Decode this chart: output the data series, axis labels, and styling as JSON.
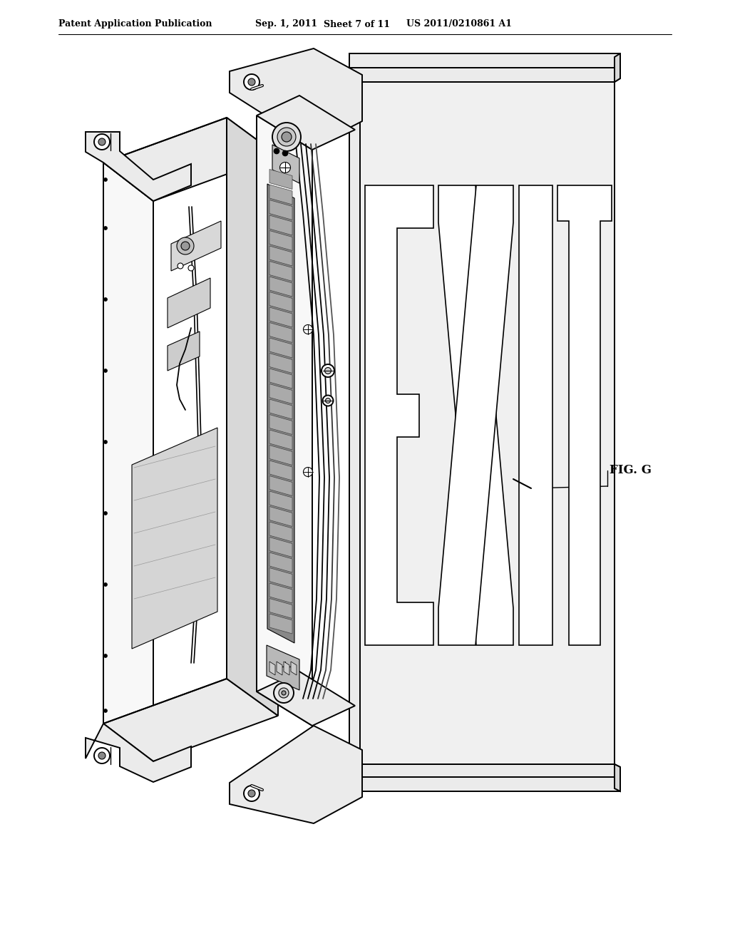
{
  "bg_color": "#ffffff",
  "line_color": "#000000",
  "header_text": "Patent Application Publication",
  "header_date": "Sep. 1, 2011",
  "header_sheet": "Sheet 7 of 11",
  "header_patent": "US 2011/0210861 A1",
  "fig_label": "FIG. G",
  "lw_main": 1.4,
  "lw_thin": 0.8,
  "lw_thick": 2.0,
  "face_light": "#f8f8f8",
  "face_mid": "#ebebeb",
  "face_dark": "#d8d8d8",
  "face_gray": "#c8c8c8"
}
